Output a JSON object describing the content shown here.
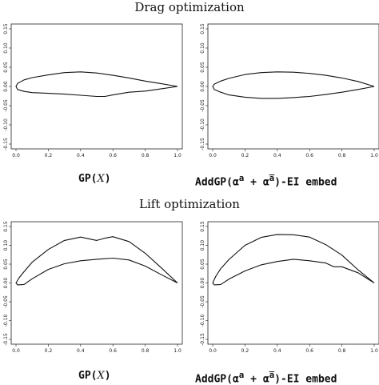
{
  "titles": {
    "drag": "Drag optimization",
    "lift": "Lift optimization"
  },
  "captions": {
    "gp_prefix": "GP(",
    "gp_var": "X",
    "gp_suffix": ")",
    "add_prefix": "AddGP(",
    "add_greek": "α",
    "add_sup_a": "a",
    "add_plus": " + ",
    "add_sup_abar": "a̅",
    "add_suffix": ")-EI embed"
  },
  "chart_data": [
    {
      "type": "line",
      "title": "",
      "xlim": [
        0,
        1.0
      ],
      "ylim": [
        -0.15,
        0.15
      ],
      "x_ticks": [
        "0.0",
        "0.2",
        "0.4",
        "0.6",
        "0.8",
        "1.0"
      ],
      "y_ticks": [
        "-0.15",
        "-0.10",
        "-0.05",
        "0.00",
        "0.05",
        "0.10",
        "0.15"
      ],
      "series": [
        {
          "x": [
            1.0,
            0.9,
            0.8,
            0.7,
            0.6,
            0.5,
            0.4,
            0.3,
            0.2,
            0.1,
            0.05,
            0.01,
            0.0,
            0.01,
            0.05,
            0.1,
            0.2,
            0.3,
            0.4,
            0.5,
            0.55,
            0.6,
            0.7,
            0.8,
            0.9,
            1.0
          ],
          "y": [
            0.0,
            0.007,
            0.014,
            0.022,
            0.029,
            0.035,
            0.038,
            0.036,
            0.03,
            0.023,
            0.017,
            0.008,
            0.0,
            -0.008,
            -0.013,
            -0.016,
            -0.018,
            -0.02,
            -0.023,
            -0.026,
            -0.026,
            -0.022,
            -0.015,
            -0.012,
            -0.006,
            0.0
          ]
        }
      ]
    },
    {
      "type": "line",
      "title": "",
      "xlim": [
        0,
        1.0
      ],
      "ylim": [
        -0.15,
        0.15
      ],
      "x_ticks": [
        "0.0",
        "0.2",
        "0.4",
        "0.6",
        "0.8",
        "1.0"
      ],
      "y_ticks": [
        "-0.15",
        "-0.10",
        "-0.05",
        "0.00",
        "0.05",
        "0.10",
        "0.15"
      ],
      "series": [
        {
          "x": [
            1.0,
            0.9,
            0.8,
            0.7,
            0.6,
            0.5,
            0.4,
            0.3,
            0.2,
            0.1,
            0.05,
            0.01,
            0.0,
            0.01,
            0.05,
            0.1,
            0.2,
            0.3,
            0.4,
            0.5,
            0.6,
            0.7,
            0.8,
            0.9,
            1.0
          ],
          "y": [
            0.0,
            0.013,
            0.022,
            0.029,
            0.034,
            0.037,
            0.038,
            0.036,
            0.031,
            0.021,
            0.014,
            0.006,
            0.0,
            -0.008,
            -0.015,
            -0.022,
            -0.028,
            -0.031,
            -0.031,
            -0.029,
            -0.026,
            -0.021,
            -0.015,
            -0.008,
            0.0
          ]
        }
      ]
    },
    {
      "type": "line",
      "title": "",
      "xlim": [
        0,
        1.0
      ],
      "ylim": [
        -0.15,
        0.15
      ],
      "x_ticks": [
        "0.0",
        "0.2",
        "0.4",
        "0.6",
        "0.8",
        "1.0"
      ],
      "y_ticks": [
        "-0.15",
        "-0.10",
        "-0.05",
        "0.00",
        "0.05",
        "0.10",
        "0.15"
      ],
      "series": [
        {
          "x": [
            1.0,
            0.9,
            0.8,
            0.7,
            0.6,
            0.55,
            0.5,
            0.4,
            0.3,
            0.2,
            0.1,
            0.05,
            0.02,
            0.0,
            0.01,
            0.05,
            0.1,
            0.2,
            0.3,
            0.4,
            0.5,
            0.6,
            0.7,
            0.8,
            0.9,
            1.0
          ],
          "y": [
            0.0,
            0.04,
            0.079,
            0.11,
            0.123,
            0.119,
            0.113,
            0.122,
            0.113,
            0.089,
            0.055,
            0.03,
            0.014,
            0.0,
            -0.005,
            -0.004,
            0.011,
            0.036,
            0.051,
            0.059,
            0.063,
            0.066,
            0.061,
            0.045,
            0.022,
            0.0
          ]
        }
      ]
    },
    {
      "type": "line",
      "title": "",
      "xlim": [
        0,
        1.0
      ],
      "ylim": [
        -0.15,
        0.15
      ],
      "x_ticks": [
        "0.0",
        "0.2",
        "0.4",
        "0.6",
        "0.8",
        "1.0"
      ],
      "y_ticks": [
        "-0.15",
        "-0.10",
        "-0.05",
        "0.00",
        "0.05",
        "0.10",
        "0.15"
      ],
      "series": [
        {
          "x": [
            1.0,
            0.9,
            0.8,
            0.7,
            0.6,
            0.5,
            0.4,
            0.3,
            0.2,
            0.1,
            0.05,
            0.02,
            0.0,
            0.01,
            0.05,
            0.1,
            0.2,
            0.3,
            0.4,
            0.5,
            0.6,
            0.7,
            0.75,
            0.8,
            0.9,
            1.0
          ],
          "y": [
            0.0,
            0.035,
            0.074,
            0.102,
            0.122,
            0.128,
            0.129,
            0.121,
            0.1,
            0.062,
            0.038,
            0.018,
            0.0,
            -0.005,
            -0.004,
            0.01,
            0.032,
            0.048,
            0.057,
            0.063,
            0.059,
            0.053,
            0.043,
            0.043,
            0.027,
            0.0
          ]
        }
      ]
    }
  ]
}
